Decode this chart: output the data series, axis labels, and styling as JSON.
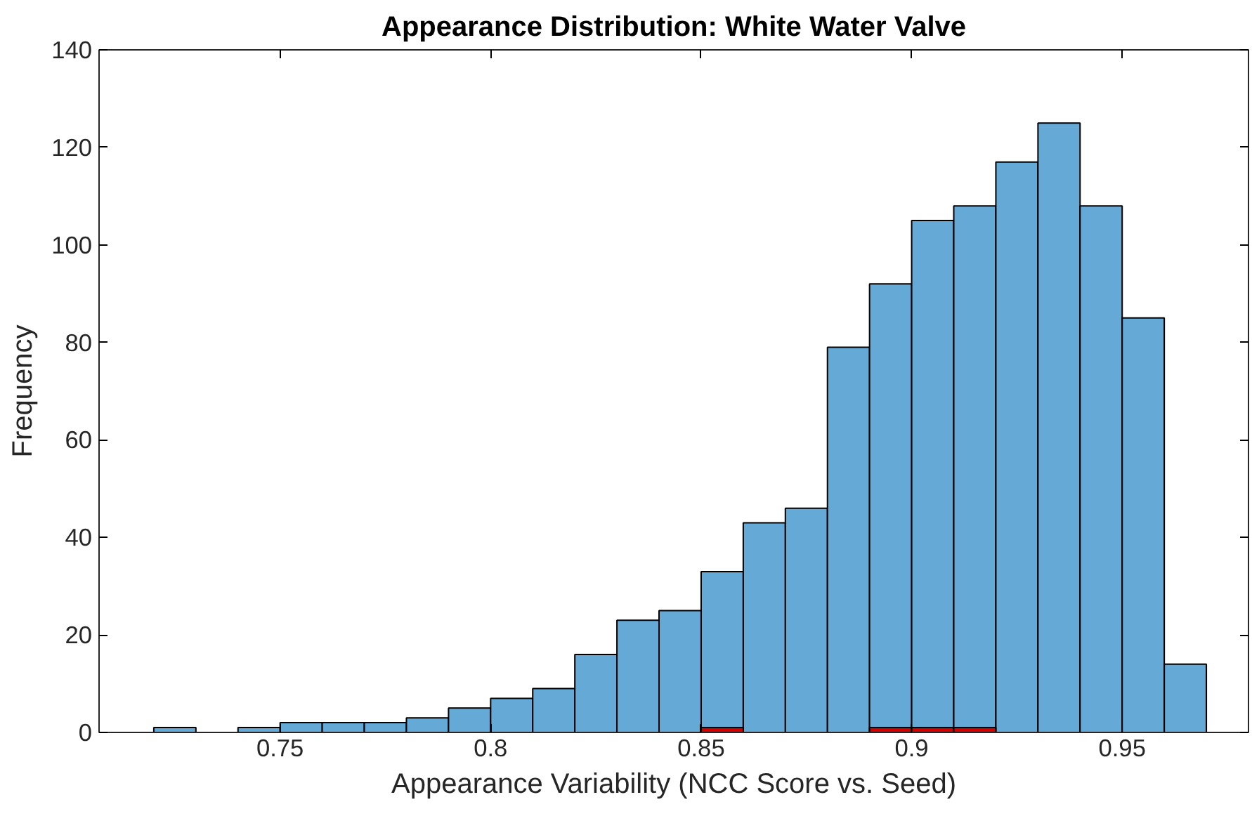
{
  "chart_data": {
    "type": "histogram",
    "title": "Appearance Distribution: White Water Valve",
    "xlabel": "Appearance Variability (NCC Score vs. Seed)",
    "ylabel": "Frequency",
    "bins": [
      0.72,
      0.73,
      0.74,
      0.75,
      0.76,
      0.77,
      0.78,
      0.79,
      0.8,
      0.81,
      0.82,
      0.83,
      0.84,
      0.85,
      0.86,
      0.87,
      0.88,
      0.89,
      0.9,
      0.91,
      0.92,
      0.93,
      0.94,
      0.95,
      0.96,
      0.97
    ],
    "series": [
      {
        "color": "#65a9d7",
        "values": [
          1,
          0,
          1,
          2,
          2,
          2,
          3,
          5,
          7,
          9,
          16,
          23,
          25,
          33,
          43,
          46,
          79,
          92,
          105,
          108,
          117,
          125,
          108,
          85,
          14
        ]
      },
      {
        "color": "#d40000",
        "values": [
          0,
          0,
          0,
          0,
          0,
          0,
          0,
          0,
          0,
          0,
          0,
          0,
          0,
          1,
          0,
          0,
          0,
          1,
          1,
          1,
          0,
          0,
          0,
          0,
          0
        ]
      }
    ],
    "xlim": [
      0.707,
      0.98
    ],
    "ylim": [
      0,
      140
    ],
    "xticks": [
      0.75,
      0.8,
      0.85,
      0.9,
      0.95
    ],
    "yticks": [
      0,
      20,
      40,
      60,
      80,
      100,
      120,
      140
    ],
    "grid": false
  }
}
